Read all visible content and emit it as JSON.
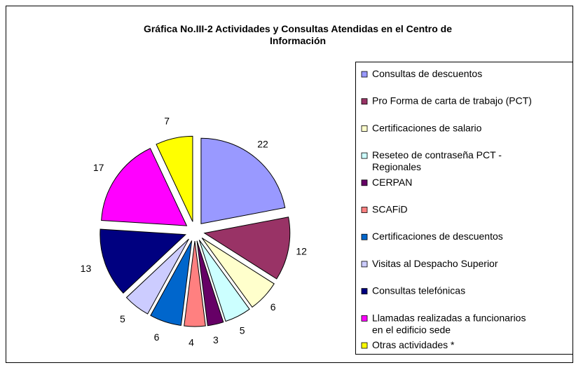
{
  "chart_data": {
    "type": "pie",
    "title": "Gráfica No.III-2 Actividades y Consultas Atendidas en el Centro de Información",
    "categories": [
      "Consultas de descuentos",
      "Pro Forma de carta de trabajo (PCT)",
      "Certificaciones de salario",
      "Reseteo de contraseña PCT - Regionales",
      "CERPAN",
      "SCAFiD",
      "Certificaciones de descuentos",
      "Visitas al Despacho Superior",
      "Consultas telefónicas",
      "Llamadas realizadas a funcionarios en el edificio sede",
      "Otras actividades *"
    ],
    "values": [
      22,
      12,
      6,
      5,
      3,
      4,
      6,
      5,
      13,
      17,
      7
    ],
    "colors": [
      "#9999ff",
      "#993366",
      "#ffffcc",
      "#ccffff",
      "#660066",
      "#ff8080",
      "#0066cc",
      "#ccccff",
      "#000080",
      "#ff00ff",
      "#ffff00"
    ],
    "legend": "right"
  }
}
